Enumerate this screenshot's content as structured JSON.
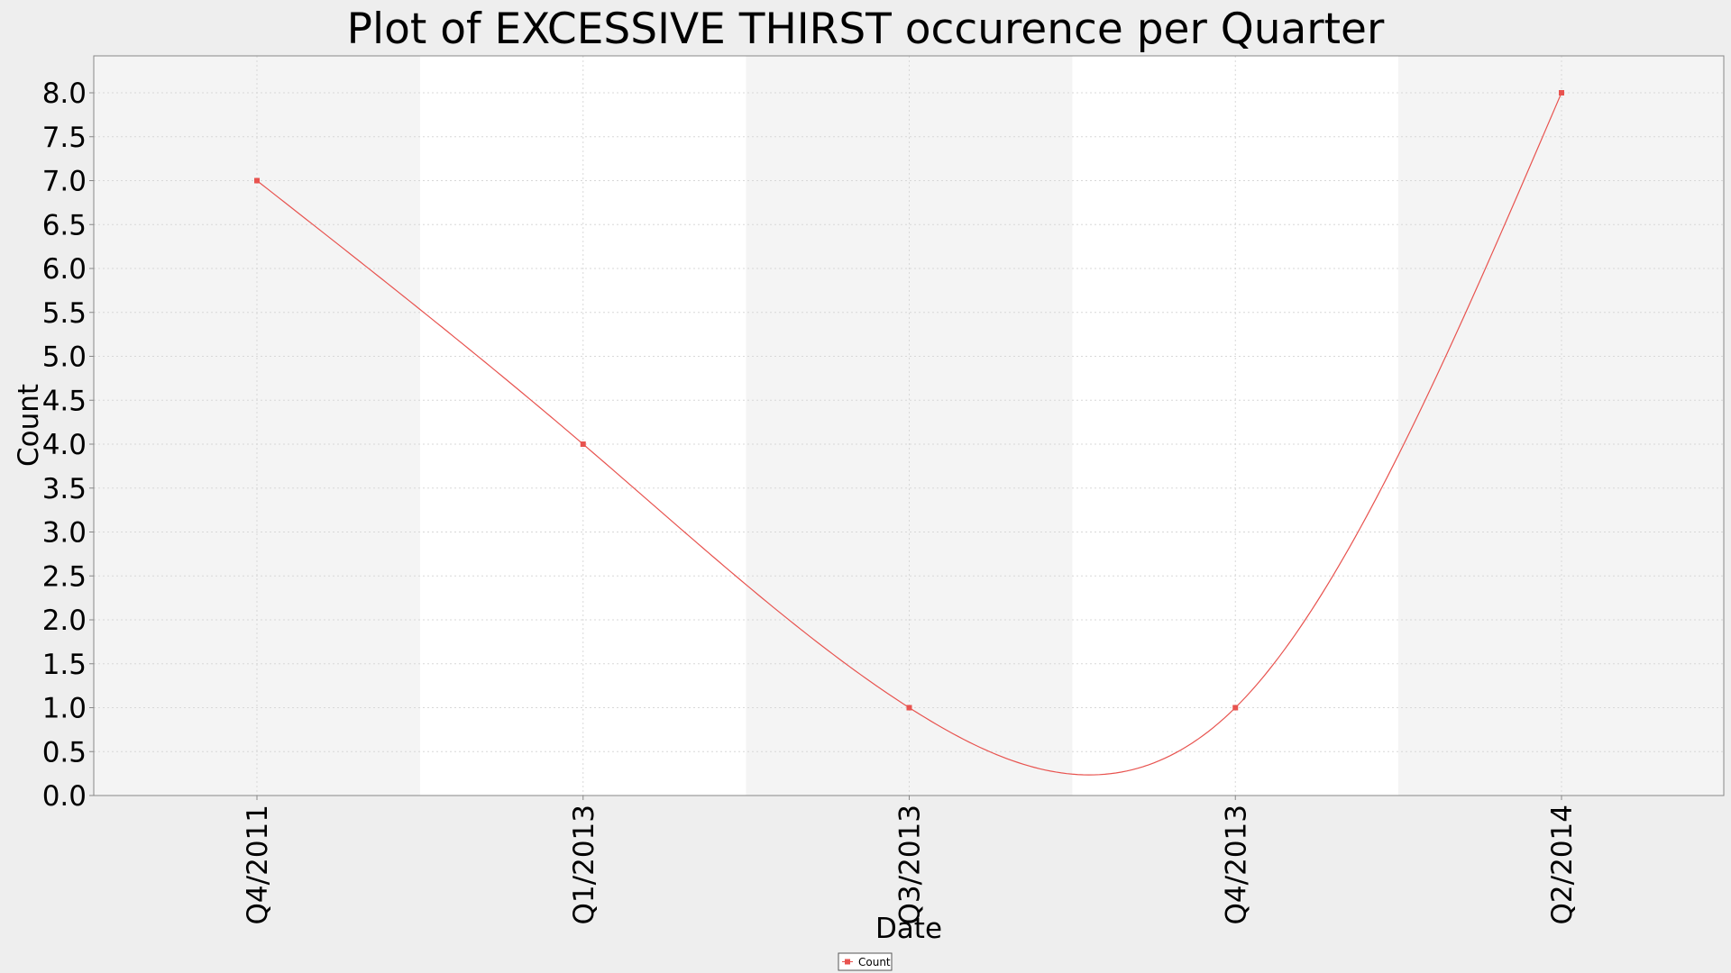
{
  "chart_data": {
    "type": "line",
    "title": "Plot of EXCESSIVE THIRST occurence per Quarter",
    "xlabel": "Date",
    "ylabel": "Count",
    "categories": [
      "Q4/2011",
      "Q1/2013",
      "Q3/2013",
      "Q4/2013",
      "Q2/2014"
    ],
    "series": [
      {
        "name": "Count",
        "values": [
          7.0,
          4.0,
          1.0,
          1.0,
          8.0
        ]
      }
    ],
    "ylim": [
      0.0,
      8.0
    ],
    "yticks": [
      0.0,
      0.5,
      1.0,
      1.5,
      2.0,
      2.5,
      3.0,
      3.5,
      4.0,
      4.5,
      5.0,
      5.5,
      6.0,
      6.5,
      7.0,
      7.5,
      8.0
    ],
    "ytick_labels": [
      "0.0",
      "0.5",
      "1.0",
      "1.5",
      "2.0",
      "2.5",
      "3.0",
      "3.5",
      "4.0",
      "4.5",
      "5.0",
      "5.5",
      "6.0",
      "6.5",
      "7.0",
      "7.5",
      "8.0"
    ],
    "smoothing": "cubic-spline",
    "grid": true,
    "legend_position": "bottom-center",
    "colors": {
      "series": "#e8534f",
      "background": "#eeeeee",
      "band_shaded": "#f4f4f4",
      "band_plain": "#ffffff",
      "grid": "#d8d8d8",
      "axis": "#888888"
    }
  }
}
